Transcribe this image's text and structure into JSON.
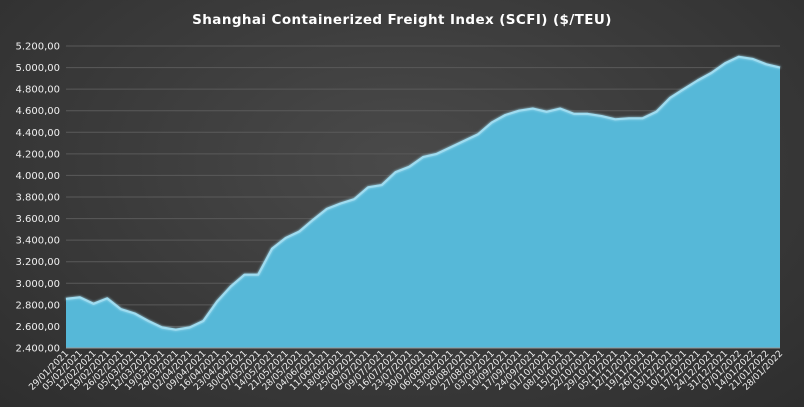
{
  "chart_data": {
    "type": "area",
    "title": "Shanghai Containerized Freight Index  (SCFI) ($/TEU)",
    "xlabel": "",
    "ylabel": "",
    "ylim": [
      2400,
      5200
    ],
    "y_ticks": [
      "2.400,00",
      "2.600,00",
      "2.800,00",
      "3.000,00",
      "3.200,00",
      "3.400,00",
      "3.600,00",
      "3.800,00",
      "4.000,00",
      "4.200,00",
      "4.400,00",
      "4.600,00",
      "4.800,00",
      "5.000,00",
      "5.200,00"
    ],
    "grid": true,
    "colors": {
      "fill": "#56b8d8",
      "line": "#9fdcf0",
      "grid": "#5a5a5a"
    },
    "x": [
      "29/01/2021",
      "05/02/2021",
      "12/02/2021",
      "19/02/2021",
      "26/02/2021",
      "05/03/2021",
      "12/03/2021",
      "19/03/2021",
      "26/03/2021",
      "02/04/2021",
      "09/04/2021",
      "16/04/2021",
      "23/04/2021",
      "30/04/2021",
      "07/05/2021",
      "14/05/2021",
      "21/05/2021",
      "28/05/2021",
      "04/06/2021",
      "11/06/2021",
      "18/06/2021",
      "25/06/2021",
      "02/07/2021",
      "09/07/2021",
      "16/07/2021",
      "23/07/2021",
      "30/07/2021",
      "06/08/2021",
      "13/08/2021",
      "20/08/2021",
      "27/08/2021",
      "03/09/2021",
      "10/09/2021",
      "17/09/2021",
      "24/09/2021",
      "01/10/2021",
      "08/10/2021",
      "15/10/2021",
      "22/10/2021",
      "29/10/2021",
      "05/11/2021",
      "12/11/2021",
      "19/11/2021",
      "26/11/2021",
      "03/12/2021",
      "10/12/2021",
      "17/12/2021",
      "24/12/2021",
      "31/12/2021",
      "07/01/2022",
      "14/01/2022",
      "21/01/2022",
      "28/01/2022"
    ],
    "values": [
      2855,
      2870,
      2810,
      2860,
      2760,
      2720,
      2650,
      2590,
      2570,
      2590,
      2650,
      2830,
      2970,
      3080,
      3080,
      3320,
      3420,
      3480,
      3590,
      3690,
      3740,
      3780,
      3890,
      3910,
      4030,
      4080,
      4170,
      4200,
      4260,
      4320,
      4380,
      4490,
      4560,
      4600,
      4620,
      4590,
      4620,
      4570,
      4570,
      4550,
      4520,
      4530,
      4530,
      4590,
      4720,
      4800,
      4880,
      4950,
      5040,
      5100,
      5080,
      5030,
      5000
    ]
  }
}
